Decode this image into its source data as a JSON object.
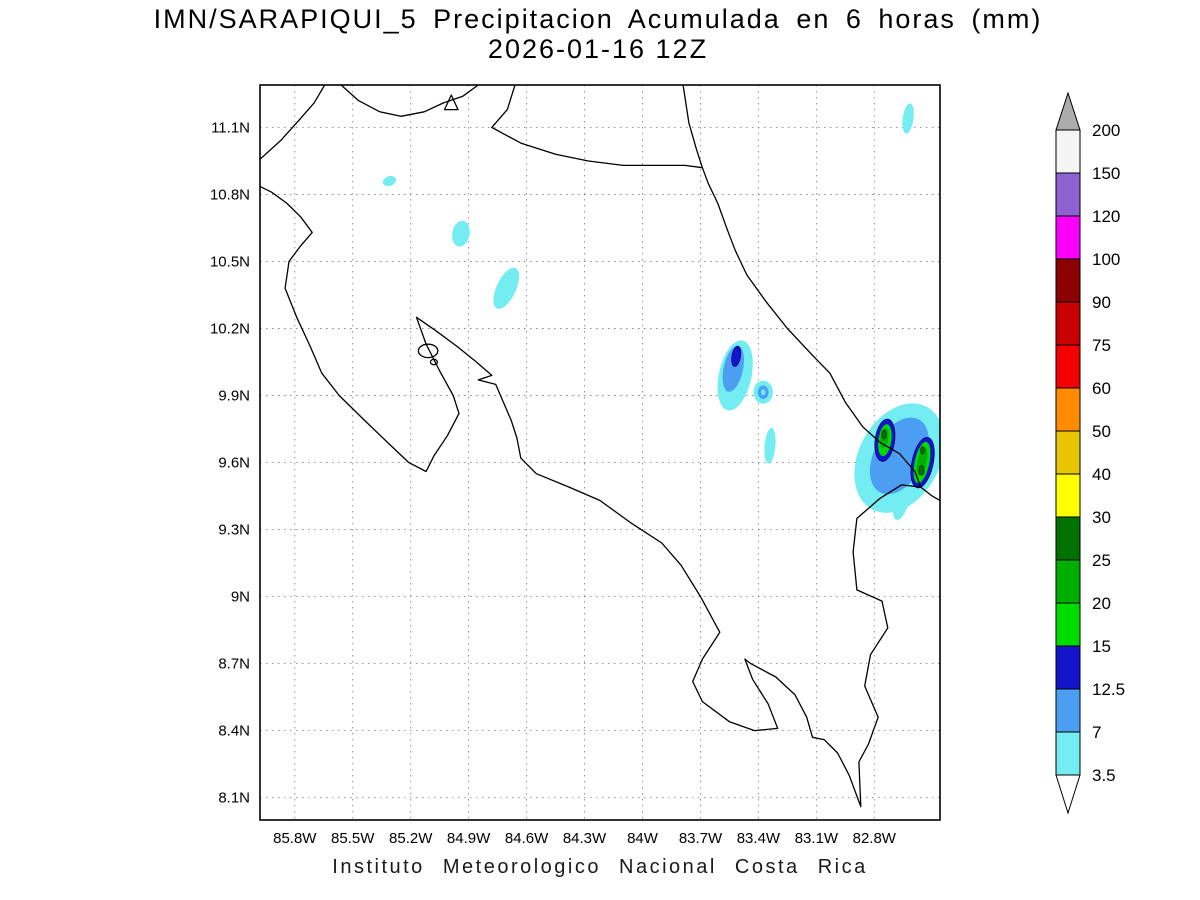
{
  "title": {
    "line1": "IMN/SARAPIQUI_5 Precipitacion Acumulada en 6 horas (mm)",
    "line2": "2026-01-16 12Z"
  },
  "footer": "Instituto Meteorologico Nacional Costa Rica",
  "chart_data": {
    "type": "heatmap",
    "subtype": "filled-contour-precipitation-map",
    "title": "IMN/SARAPIQUI_5 Precipitacion Acumulada en 6 horas (mm)",
    "subtitle": "2026-01-16 12Z",
    "units": "mm",
    "region": "Costa Rica",
    "projection": {
      "lon_min": -85.98,
      "lon_max": -82.46,
      "lat_min": 8.0,
      "lat_max": 11.29
    },
    "grid": "dotted",
    "lat_ticks": [
      {
        "label": "11.1N",
        "value": 11.1
      },
      {
        "label": "10.8N",
        "value": 10.8
      },
      {
        "label": "10.5N",
        "value": 10.5
      },
      {
        "label": "10.2N",
        "value": 10.2
      },
      {
        "label": "9.9N",
        "value": 9.9
      },
      {
        "label": "9.6N",
        "value": 9.6
      },
      {
        "label": "9.3N",
        "value": 9.3
      },
      {
        "label": "9N",
        "value": 9.0
      },
      {
        "label": "8.7N",
        "value": 8.7
      },
      {
        "label": "8.4N",
        "value": 8.4
      },
      {
        "label": "8.1N",
        "value": 8.1
      }
    ],
    "lon_ticks": [
      {
        "label": "85.8W",
        "value": -85.8
      },
      {
        "label": "85.5W",
        "value": -85.5
      },
      {
        "label": "85.2W",
        "value": -85.2
      },
      {
        "label": "84.9W",
        "value": -84.9
      },
      {
        "label": "84.6W",
        "value": -84.6
      },
      {
        "label": "84.3W",
        "value": -84.3
      },
      {
        "label": "84W",
        "value": -84.0
      },
      {
        "label": "83.7W",
        "value": -83.7
      },
      {
        "label": "83.4W",
        "value": -83.4
      },
      {
        "label": "83.1W",
        "value": -83.1
      },
      {
        "label": "82.8W",
        "value": -82.8
      }
    ],
    "colorbar": {
      "levels": [
        "3.5",
        "7",
        "12.5",
        "15",
        "20",
        "25",
        "30",
        "40",
        "50",
        "60",
        "75",
        "90",
        "100",
        "120",
        "150",
        "200"
      ],
      "segment_colors": [
        "#74EDF2",
        "#4C9EF2",
        "#1414CC",
        "#00DC00",
        "#00AE00",
        "#007200",
        "#FFFF00",
        "#E9C400",
        "#FF8C00",
        "#F50000",
        "#C80000",
        "#8B0000",
        "#FA00FA",
        "#8F62D2",
        "#F4F4F4"
      ],
      "below_color": "#FFFFFF",
      "above_color": "#ACACAC",
      "position": "right"
    },
    "level_colors": {
      "3.5": "#74EDF2",
      "7": "#4C9EF2",
      "12.5": "#1414CC",
      "15": "#00DC00",
      "20": "#00AE00",
      "25": "#007200"
    },
    "coastlines": [
      {
        "name": "lake-nicaragua-south-shore",
        "closed": false,
        "pts": [
          [
            -85.56,
            11.29
          ],
          [
            -85.47,
            11.22
          ],
          [
            -85.36,
            11.17
          ],
          [
            -85.25,
            11.15
          ],
          [
            -85.13,
            11.17
          ],
          [
            -85.03,
            11.21
          ],
          [
            -84.93,
            11.24
          ],
          [
            -84.85,
            11.29
          ]
        ]
      },
      {
        "name": "solentiname-island",
        "closed": true,
        "pts": [
          [
            -84.99,
            11.245
          ],
          [
            -84.955,
            11.18
          ],
          [
            -85.025,
            11.18
          ]
        ]
      },
      {
        "name": "lake-east-sanjuan-river-caribbean-coast",
        "closed": false,
        "pts": [
          [
            -84.66,
            11.29
          ],
          [
            -84.7,
            11.18
          ],
          [
            -84.78,
            11.1
          ],
          [
            -84.63,
            11.03
          ],
          [
            -84.45,
            10.98
          ],
          [
            -84.28,
            10.95
          ],
          [
            -84.1,
            10.93
          ],
          [
            -83.92,
            10.93
          ],
          [
            -83.78,
            10.93
          ],
          [
            -83.69,
            10.92
          ],
          [
            -83.66,
            10.85
          ],
          [
            -83.61,
            10.76
          ],
          [
            -83.56,
            10.64
          ],
          [
            -83.52,
            10.55
          ],
          [
            -83.46,
            10.44
          ],
          [
            -83.36,
            10.32
          ],
          [
            -83.25,
            10.2
          ],
          [
            -83.12,
            10.08
          ],
          [
            -83.03,
            10.0
          ],
          [
            -82.95,
            9.87
          ],
          [
            -82.86,
            9.76
          ],
          [
            -82.77,
            9.69
          ],
          [
            -82.67,
            9.64
          ],
          [
            -82.59,
            9.56
          ],
          [
            -82.56,
            9.49
          ],
          [
            -82.5,
            9.45
          ],
          [
            -82.44,
            9.42
          ]
        ]
      },
      {
        "name": "nicaragua-caribbean-coast",
        "closed": false,
        "pts": [
          [
            -83.69,
            10.92
          ],
          [
            -83.72,
            11.0
          ],
          [
            -83.76,
            11.12
          ],
          [
            -83.79,
            11.29
          ]
        ]
      },
      {
        "name": "panama-border-and-pacific-coast",
        "closed": false,
        "pts": [
          [
            -82.56,
            9.49
          ],
          [
            -82.66,
            9.5
          ],
          [
            -82.77,
            9.44
          ],
          [
            -82.89,
            9.35
          ],
          [
            -82.91,
            9.2
          ],
          [
            -82.89,
            9.03
          ],
          [
            -82.76,
            8.98
          ],
          [
            -82.73,
            8.86
          ],
          [
            -82.82,
            8.74
          ],
          [
            -82.85,
            8.6
          ],
          [
            -82.78,
            8.46
          ],
          [
            -82.83,
            8.34
          ],
          [
            -82.88,
            8.26
          ],
          [
            -82.87,
            8.06
          ],
          [
            -82.93,
            8.2
          ],
          [
            -82.99,
            8.3
          ],
          [
            -83.06,
            8.36
          ],
          [
            -83.12,
            8.37
          ],
          [
            -83.15,
            8.46
          ],
          [
            -83.21,
            8.56
          ],
          [
            -83.31,
            8.64
          ],
          [
            -83.44,
            8.7
          ],
          [
            -83.47,
            8.72
          ],
          [
            -83.43,
            8.63
          ],
          [
            -83.35,
            8.52
          ],
          [
            -83.3,
            8.41
          ],
          [
            -83.42,
            8.4
          ],
          [
            -83.55,
            8.44
          ],
          [
            -83.69,
            8.53
          ],
          [
            -83.74,
            8.62
          ],
          [
            -83.69,
            8.72
          ],
          [
            -83.6,
            8.84
          ],
          [
            -83.7,
            9.0
          ],
          [
            -83.8,
            9.14
          ],
          [
            -83.9,
            9.24
          ],
          [
            -84.06,
            9.33
          ],
          [
            -84.22,
            9.43
          ],
          [
            -84.38,
            9.49
          ],
          [
            -84.55,
            9.55
          ],
          [
            -84.63,
            9.62
          ],
          [
            -84.65,
            9.71
          ],
          [
            -84.68,
            9.79
          ],
          [
            -84.72,
            9.87
          ],
          [
            -84.76,
            9.95
          ],
          [
            -84.85,
            9.97
          ],
          [
            -84.78,
            9.99
          ],
          [
            -84.86,
            10.05
          ],
          [
            -84.96,
            10.12
          ],
          [
            -85.07,
            10.19
          ],
          [
            -85.17,
            10.25
          ],
          [
            -85.12,
            10.13
          ],
          [
            -85.05,
            10.01
          ],
          [
            -84.98,
            9.9
          ],
          [
            -84.95,
            9.82
          ],
          [
            -85.01,
            9.72
          ],
          [
            -85.08,
            9.63
          ],
          [
            -85.12,
            9.56
          ],
          [
            -85.21,
            9.6
          ],
          [
            -85.32,
            9.69
          ],
          [
            -85.44,
            9.79
          ],
          [
            -85.57,
            9.9
          ],
          [
            -85.66,
            10.0
          ],
          [
            -85.72,
            10.12
          ],
          [
            -85.79,
            10.25
          ],
          [
            -85.85,
            10.38
          ],
          [
            -85.83,
            10.5
          ],
          [
            -85.77,
            10.57
          ],
          [
            -85.71,
            10.63
          ],
          [
            -85.77,
            10.7
          ],
          [
            -85.84,
            10.76
          ],
          [
            -85.92,
            10.81
          ],
          [
            -85.99,
            10.84
          ]
        ]
      },
      {
        "name": "nicaragua-pacific-coast",
        "closed": false,
        "pts": [
          [
            -85.99,
            10.95
          ],
          [
            -85.875,
            11.04
          ],
          [
            -85.78,
            11.13
          ],
          [
            -85.7,
            11.21
          ],
          [
            -85.645,
            11.29
          ]
        ]
      }
    ],
    "islands": [
      {
        "name": "isla-chira",
        "lon": -85.11,
        "lat": 10.1,
        "rx": 0.05,
        "ry": 0.03
      },
      {
        "name": "islet",
        "lon": -85.08,
        "lat": 10.05,
        "rx": 0.018,
        "ry": 0.012
      }
    ],
    "precip_blobs": [
      {
        "lon": -85.31,
        "lat": 10.86,
        "rx": 0.035,
        "ry": 0.022,
        "rot": -20,
        "level": "3.5"
      },
      {
        "lon": -84.94,
        "lat": 10.625,
        "rx": 0.045,
        "ry": 0.058,
        "rot": 10,
        "level": "3.5"
      },
      {
        "lon": -84.705,
        "lat": 10.38,
        "rx": 0.05,
        "ry": 0.1,
        "rot": 25,
        "level": "3.5"
      },
      {
        "lon": -82.625,
        "lat": 11.14,
        "rx": 0.028,
        "ry": 0.068,
        "rot": 8,
        "level": "3.5"
      },
      {
        "lon": -83.52,
        "lat": 9.99,
        "rx": 0.085,
        "ry": 0.16,
        "rot": 12,
        "level": "3.5"
      },
      {
        "lon": -83.53,
        "lat": 10.02,
        "rx": 0.05,
        "ry": 0.105,
        "rot": 12,
        "level": "7"
      },
      {
        "lon": -83.515,
        "lat": 10.075,
        "rx": 0.022,
        "ry": 0.045,
        "rot": 10,
        "level": "12.5"
      },
      {
        "lon": -83.375,
        "lat": 9.915,
        "rx": 0.05,
        "ry": 0.052,
        "rot": 0,
        "level": "3.5"
      },
      {
        "lon": -83.375,
        "lat": 9.915,
        "rx": 0.028,
        "ry": 0.03,
        "rot": 0,
        "level": "7"
      },
      {
        "lon": -83.375,
        "lat": 9.915,
        "rx": 0.012,
        "ry": 0.013,
        "rot": 0,
        "level": "3.5"
      },
      {
        "lon": -83.34,
        "lat": 9.675,
        "rx": 0.028,
        "ry": 0.08,
        "rot": 5,
        "level": "3.5"
      },
      {
        "lon": -82.67,
        "lat": 9.62,
        "rx": 0.21,
        "ry": 0.26,
        "rot": 28,
        "level": "3.5"
      },
      {
        "lon": -82.655,
        "lat": 9.44,
        "rx": 0.04,
        "ry": 0.1,
        "rot": 15,
        "level": "3.5"
      },
      {
        "lon": -82.67,
        "lat": 9.63,
        "rx": 0.13,
        "ry": 0.185,
        "rot": 28,
        "level": "7"
      },
      {
        "lon": -82.745,
        "lat": 9.7,
        "rx": 0.05,
        "ry": 0.095,
        "rot": 8,
        "level": "12.5"
      },
      {
        "lon": -82.55,
        "lat": 9.6,
        "rx": 0.055,
        "ry": 0.115,
        "rot": 12,
        "level": "12.5"
      },
      {
        "lon": -82.745,
        "lat": 9.7,
        "rx": 0.033,
        "ry": 0.072,
        "rot": 8,
        "level": "15"
      },
      {
        "lon": -82.553,
        "lat": 9.6,
        "rx": 0.038,
        "ry": 0.095,
        "rot": 12,
        "level": "15"
      },
      {
        "lon": -82.748,
        "lat": 9.71,
        "rx": 0.02,
        "ry": 0.048,
        "rot": 8,
        "level": "20"
      },
      {
        "lon": -82.553,
        "lat": 9.605,
        "rx": 0.024,
        "ry": 0.065,
        "rot": 12,
        "level": "20"
      },
      {
        "lon": -82.75,
        "lat": 9.725,
        "rx": 0.011,
        "ry": 0.02,
        "rot": 0,
        "level": "25"
      },
      {
        "lon": -82.555,
        "lat": 9.565,
        "rx": 0.013,
        "ry": 0.022,
        "rot": 0,
        "level": "25"
      },
      {
        "lon": -82.55,
        "lat": 9.655,
        "rx": 0.01,
        "ry": 0.016,
        "rot": 0,
        "level": "25"
      }
    ]
  }
}
